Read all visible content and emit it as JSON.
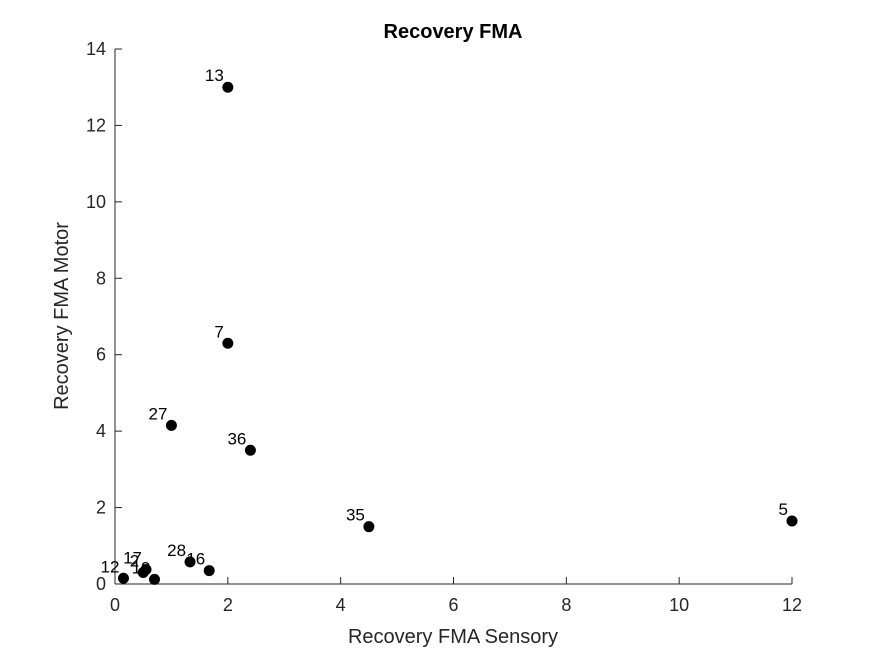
{
  "chart_data": {
    "type": "scatter",
    "title": "Recovery FMA",
    "xlabel": "Recovery FMA Sensory",
    "ylabel": "Recovery FMA Motor",
    "xlim": [
      0,
      12
    ],
    "ylim": [
      0,
      14
    ],
    "xticks": [
      "0",
      "2",
      "4",
      "6",
      "8",
      "10",
      "12"
    ],
    "yticks": [
      "0",
      "2",
      "4",
      "6",
      "8",
      "10",
      "12",
      "14"
    ],
    "grid": false,
    "marker_color": "#000000",
    "points": [
      {
        "label": "13",
        "x": 2.0,
        "y": 13.0
      },
      {
        "label": "7",
        "x": 2.0,
        "y": 6.3
      },
      {
        "label": "27",
        "x": 1.0,
        "y": 4.15
      },
      {
        "label": "36",
        "x": 2.4,
        "y": 3.5
      },
      {
        "label": "35",
        "x": 4.5,
        "y": 1.5
      },
      {
        "label": "5",
        "x": 12.0,
        "y": 1.65
      },
      {
        "label": "28",
        "x": 1.33,
        "y": 0.58
      },
      {
        "label": "16",
        "x": 1.67,
        "y": 0.35
      },
      {
        "label": "17",
        "x": 0.55,
        "y": 0.38
      },
      {
        "label": "19",
        "x": 0.7,
        "y": 0.12
      },
      {
        "label": "2",
        "x": 0.5,
        "y": 0.3
      },
      {
        "label": "12",
        "x": 0.15,
        "y": 0.15
      }
    ]
  }
}
